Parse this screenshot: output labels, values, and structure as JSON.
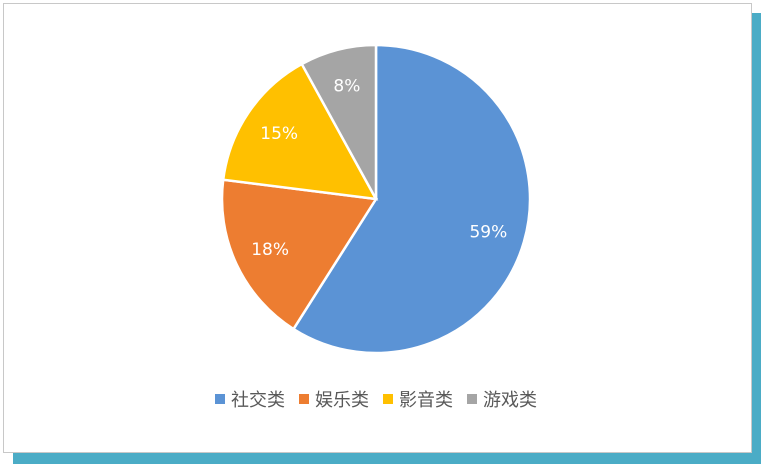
{
  "chart_data": {
    "type": "pie",
    "categories": [
      "社交类",
      "娱乐类",
      "影音类",
      "游戏类"
    ],
    "values": [
      59,
      18,
      15,
      8
    ],
    "data_labels": [
      "59%",
      "18%",
      "15%",
      "8%"
    ],
    "colors": [
      "#5b93d5",
      "#ed7d31",
      "#ffc000",
      "#a5a5a5"
    ],
    "legend": [
      "社交类",
      "娱乐类",
      "影音类",
      "游戏类"
    ],
    "legend_position": "bottom",
    "start_angle": "top, clockwise"
  }
}
